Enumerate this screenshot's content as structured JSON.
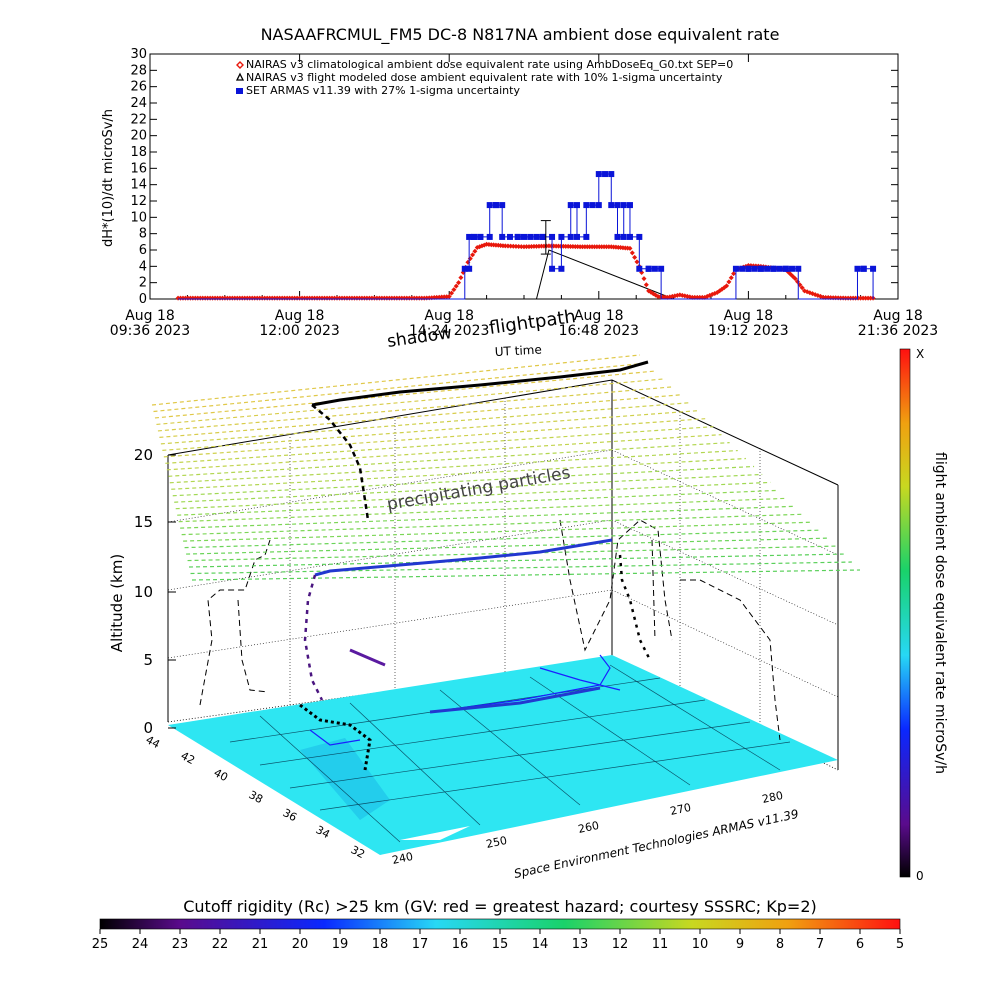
{
  "colors": {
    "climatological": "#e8180c",
    "flight_modeled": "#000000",
    "armas": "#0a14d8",
    "ground": "#2ee6f2",
    "frame": "#000000"
  },
  "top_chart": {
    "title": "NASAAFRCMUL_FM5 DC-8   N817NA ambient dose equivalent rate",
    "xlabel": "UT time",
    "ylabel": "dH*(10)/dt microSv/h",
    "y_ticks": [
      "0",
      "2",
      "4",
      "6",
      "8",
      "10",
      "12",
      "14",
      "16",
      "18",
      "20",
      "22",
      "24",
      "26",
      "28",
      "30"
    ],
    "x_ticks": [
      {
        "line1": "Aug 18",
        "line2": "09:36 2023"
      },
      {
        "line1": "Aug 18",
        "line2": "12:00 2023"
      },
      {
        "line1": "Aug 18",
        "line2": "14:24 2023"
      },
      {
        "line1": "Aug 18",
        "line2": "16:48 2023"
      },
      {
        "line1": "Aug 18",
        "line2": "19:12 2023"
      },
      {
        "line1": "Aug 18",
        "line2": "21:36 2023"
      }
    ],
    "legend": [
      {
        "symbol": "diamond",
        "text": "NAIRAS v3 climatological ambient dose equivalent rate using AmbDoseEq_G0.txt SEP=0"
      },
      {
        "symbol": "triangle",
        "text": "NAIRAS v3 flight modeled dose ambient equivalent rate with 10% 1-sigma uncertainty"
      },
      {
        "symbol": "square",
        "text": "SET ARMAS v11.39 with 27% 1-sigma uncertainty"
      }
    ]
  },
  "chart_data": {
    "type": "line",
    "x_unit": "hours UT, Aug 18 2023",
    "xlim": [
      9.6,
      21.6
    ],
    "ylim": [
      0,
      30
    ],
    "grid": false,
    "legend_position": "top",
    "series": [
      {
        "name": "NAIRAS v3 climatological ambient dose equivalent rate using AmbDoseEq_G0.txt SEP=0",
        "x": [
          10.05,
          11.0,
          12.0,
          13.0,
          14.0,
          14.4,
          14.55,
          14.7,
          14.85,
          15.0,
          15.3,
          15.6,
          16.0,
          16.5,
          17.0,
          17.3,
          17.45,
          17.6,
          17.75,
          17.9,
          18.1,
          18.3,
          18.5,
          18.7,
          18.85,
          19.0,
          19.2,
          19.4,
          19.6,
          19.8,
          19.95,
          20.1,
          20.4,
          20.8,
          21.2
        ],
        "y": [
          0.1,
          0.1,
          0.1,
          0.1,
          0.1,
          0.3,
          2.0,
          4.5,
          6.3,
          6.7,
          6.5,
          6.4,
          6.5,
          6.4,
          6.4,
          6.2,
          4.0,
          1.0,
          0.3,
          0.2,
          0.5,
          0.2,
          0.2,
          0.8,
          1.6,
          3.6,
          4.1,
          4.0,
          3.8,
          3.6,
          2.5,
          1.0,
          0.2,
          0.1,
          0.1
        ]
      },
      {
        "name": "NAIRAS v3 flight modeled dose ambient equivalent rate with 10% 1-sigma uncertainty",
        "x": [
          10.05,
          12.0,
          14.0,
          15.8,
          16.0,
          18.0,
          20.0,
          21.2
        ],
        "y": [
          0.0,
          0.0,
          0.0,
          0.0,
          6.0,
          0.0,
          0.0,
          0.0
        ]
      },
      {
        "name": "SET ARMAS v11.39 with 27% 1-sigma uncertainty",
        "x": [
          10.05,
          12.0,
          14.0,
          14.65,
          14.72,
          14.8,
          14.9,
          15.05,
          15.15,
          15.25,
          15.5,
          15.9,
          16.05,
          16.2,
          16.35,
          16.45,
          16.6,
          16.8,
          17.0,
          17.1,
          17.2,
          17.3,
          17.45,
          17.6,
          17.8,
          18.2,
          18.6,
          18.9,
          19.0,
          19.2,
          19.4,
          19.6,
          19.8,
          20.0,
          20.4,
          20.8,
          20.95,
          21.05,
          21.2
        ],
        "y": [
          0.0,
          0.0,
          0.0,
          3.7,
          7.6,
          7.6,
          7.6,
          11.5,
          11.5,
          7.6,
          7.6,
          7.6,
          3.7,
          7.6,
          11.5,
          7.6,
          11.5,
          15.3,
          11.5,
          7.6,
          11.5,
          7.6,
          3.7,
          3.7,
          0.0,
          0.0,
          0.0,
          0.0,
          3.7,
          3.7,
          3.7,
          3.7,
          3.7,
          0.0,
          0.0,
          0.0,
          3.7,
          3.7,
          0.0
        ]
      }
    ],
    "error_bar": {
      "x": 15.95,
      "y": 6.2,
      "low": 5.5,
      "high": 9.6
    }
  },
  "plot3d": {
    "annotation_flightpath": "flightpath",
    "annotation_shadow": "shadow",
    "annotation_particles": "precipitating particles",
    "z_label": "Altitude (km)",
    "z_ticks": [
      "0",
      "5",
      "10",
      "15",
      "20"
    ],
    "lat_ticks": [
      "44",
      "42",
      "40",
      "38",
      "36",
      "34",
      "32"
    ],
    "lon_ticks": [
      "240",
      "250",
      "260",
      "270",
      "280"
    ],
    "credit": "Space Environment Technologies ARMAS v11.39",
    "lon_ticks_right": [
      "270",
      "280"
    ]
  },
  "side_colorbar": {
    "label": "flight ambient dose equivalent rate microSv/h",
    "top_label": "X",
    "bottom_label": "0"
  },
  "bottom_colorbar": {
    "title": "Cutoff rigidity (Rc) >25 km (GV: red = greatest hazard; courtesy SSSRC; Kp=2)",
    "ticks": [
      "25",
      "24",
      "23",
      "22",
      "21",
      "20",
      "19",
      "18",
      "17",
      "16",
      "15",
      "14",
      "13",
      "12",
      "11",
      "10",
      "9",
      "8",
      "7",
      "6",
      "5"
    ]
  }
}
